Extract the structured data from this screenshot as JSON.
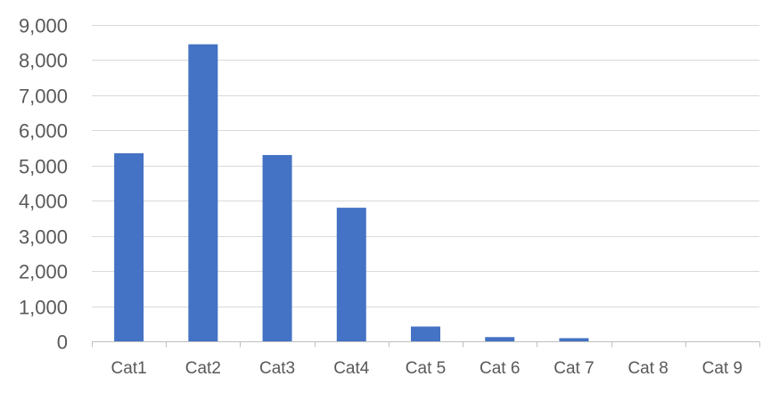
{
  "chart_data": {
    "type": "bar",
    "title": "",
    "xlabel": "",
    "ylabel": "",
    "categories": [
      "Cat1",
      "Cat2",
      "Cat3",
      "Cat4",
      "Cat 5",
      "Cat 6",
      "Cat 7",
      "Cat 8",
      "Cat 9"
    ],
    "values": [
      5350,
      8450,
      5300,
      3800,
      420,
      120,
      90,
      0,
      0
    ],
    "ylim": [
      0,
      9000
    ],
    "yticks": [
      0,
      1000,
      2000,
      3000,
      4000,
      5000,
      6000,
      7000,
      8000,
      9000
    ],
    "ytick_labels": [
      "0",
      "1,000",
      "2,000",
      "3,000",
      "4,000",
      "5,000",
      "6,000",
      "7,000",
      "8,000",
      "9,000"
    ],
    "grid": true,
    "legend": "none",
    "bar_color": "#4472C4"
  }
}
